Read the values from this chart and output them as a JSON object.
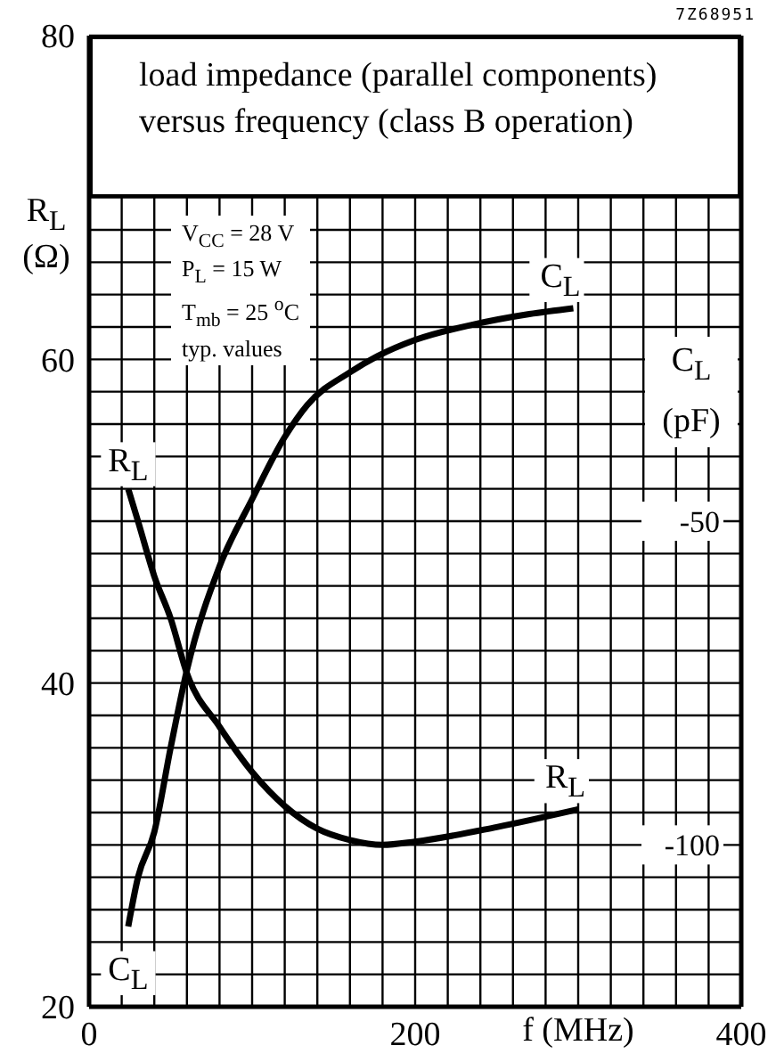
{
  "chart_data": {
    "type": "line",
    "title": "load impedance (parallel components) versus frequency (class B operation)",
    "xlabel": "f (MHz)",
    "ylabel": "R$_{L}$ (Ω)",
    "y2label": "C$_{L}$ (pF)",
    "annotations": [
      "7Z68951",
      "V$_{CC}$ = 28 V",
      "P$_{L}$ = 15 W",
      "T$_{mb}$ = 25 $^{o}$C",
      "typ. values"
    ],
    "xlim": [
      0,
      400
    ],
    "xticks": [
      0,
      {
        "value": 20,
        "label": null
      },
      {
        "value": 40,
        "label": null
      },
      {
        "value": 60,
        "label": null
      },
      {
        "value": 80,
        "label": null
      },
      {
        "value": 100,
        "label": null
      },
      {
        "value": 120,
        "label": null
      },
      {
        "value": 140,
        "label": null
      },
      {
        "value": 160,
        "label": null
      },
      {
        "value": 180,
        "label": null
      },
      200,
      {
        "value": 220,
        "label": null
      },
      {
        "value": 240,
        "label": null
      },
      {
        "value": 260,
        "label": null
      },
      {
        "value": 280,
        "label": null
      },
      {
        "value": 300,
        "label": null
      },
      {
        "value": 320,
        "label": null
      },
      {
        "value": 340,
        "label": null
      },
      {
        "value": 360,
        "label": null
      },
      {
        "value": 380,
        "label": null
      },
      400
    ],
    "ylim": [
      20,
      80
    ],
    "yticks": [
      20,
      {
        "value": 22,
        "label": null
      },
      {
        "value": 24,
        "label": null
      },
      {
        "value": 26,
        "label": null
      },
      {
        "value": 28,
        "label": null
      },
      {
        "value": 30,
        "label": null
      },
      {
        "value": 32,
        "label": null
      },
      {
        "value": 34,
        "label": null
      },
      {
        "value": 36,
        "label": null
      },
      {
        "value": 38,
        "label": null
      },
      40,
      {
        "value": 42,
        "label": null
      },
      {
        "value": 44,
        "label": null
      },
      {
        "value": 46,
        "label": null
      },
      {
        "value": 48,
        "label": null
      },
      {
        "value": 50,
        "label": null
      },
      {
        "value": 52,
        "label": null
      },
      {
        "value": 54,
        "label": null
      },
      {
        "value": 56,
        "label": null
      },
      {
        "value": 58,
        "label": null
      },
      60,
      {
        "value": 62,
        "label": null
      },
      {
        "value": 64,
        "label": null
      },
      {
        "value": 66,
        "label": null
      },
      {
        "value": 68,
        "label": null
      },
      {
        "value": 70,
        "label": null
      },
      80
    ],
    "y2lim": [
      -125,
      25
    ],
    "y2ticks": [
      -50,
      -100
    ],
    "grid": true,
    "marker": "none",
    "line_style": "solid",
    "series": [
      {
        "name": "R$_{L}$",
        "color": "#000000",
        "x": [
          24,
          30,
          40,
          50,
          60,
          80,
          100,
          120,
          140,
          160,
          180,
          200,
          250,
          300
        ],
        "values": [
          52,
          50,
          46.6,
          44,
          40.6,
          37.3,
          34.5,
          32.4,
          31,
          30.3,
          30,
          30.2,
          31.1,
          32.2
        ]
      },
      {
        "name": "C$_{L}$",
        "color": "#000000",
        "axis": "y2",
        "x": [
          24,
          30,
          40,
          50,
          60,
          80,
          100,
          120,
          134,
          160,
          177,
          200,
          236,
          270,
          297
        ],
        "values": [
          -112.6,
          -105,
          -98,
          -85,
          -73,
          -57,
          -46.6,
          -37,
          -32,
          -27,
          -24.5,
          -22,
          -19.6,
          -18,
          -17.1
        ]
      }
    ]
  }
}
